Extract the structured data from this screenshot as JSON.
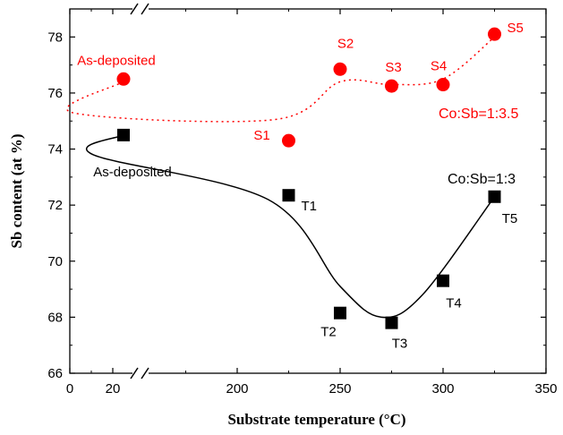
{
  "chart_data": {
    "type": "scatter",
    "title": "",
    "xlabel": "Substrate temperature (°C)",
    "ylabel": "Sb content (at %)",
    "xlim": [
      0,
      350
    ],
    "ylim": [
      66,
      79
    ],
    "x_axis_break": true,
    "x_ticks": [
      0,
      20,
      200,
      250,
      300,
      350
    ],
    "y_ticks": [
      66,
      68,
      70,
      72,
      74,
      76,
      78
    ],
    "grid": false,
    "series": [
      {
        "name": "Co:Sb=1:3.5",
        "color": "#ff0000",
        "marker": "circle",
        "line": "dotted",
        "points": [
          {
            "x": 25,
            "y": 76.5,
            "label": "As-deposited"
          },
          {
            "x": 225,
            "y": 74.3,
            "label": "S1"
          },
          {
            "x": 250,
            "y": 76.85,
            "label": "S2"
          },
          {
            "x": 275,
            "y": 76.25,
            "label": "S3"
          },
          {
            "x": 300,
            "y": 76.3,
            "label": "S4"
          },
          {
            "x": 325,
            "y": 78.1,
            "label": "S5"
          }
        ]
      },
      {
        "name": "Co:Sb=1:3",
        "color": "#000000",
        "marker": "square",
        "line": "solid",
        "points": [
          {
            "x": 25,
            "y": 74.5,
            "label": "As-deposited"
          },
          {
            "x": 225,
            "y": 72.35,
            "label": "T1"
          },
          {
            "x": 250,
            "y": 68.15,
            "label": "T2"
          },
          {
            "x": 275,
            "y": 67.8,
            "label": "T3"
          },
          {
            "x": 300,
            "y": 69.3,
            "label": "T4"
          },
          {
            "x": 325,
            "y": 72.3,
            "label": "T5"
          }
        ]
      }
    ]
  }
}
